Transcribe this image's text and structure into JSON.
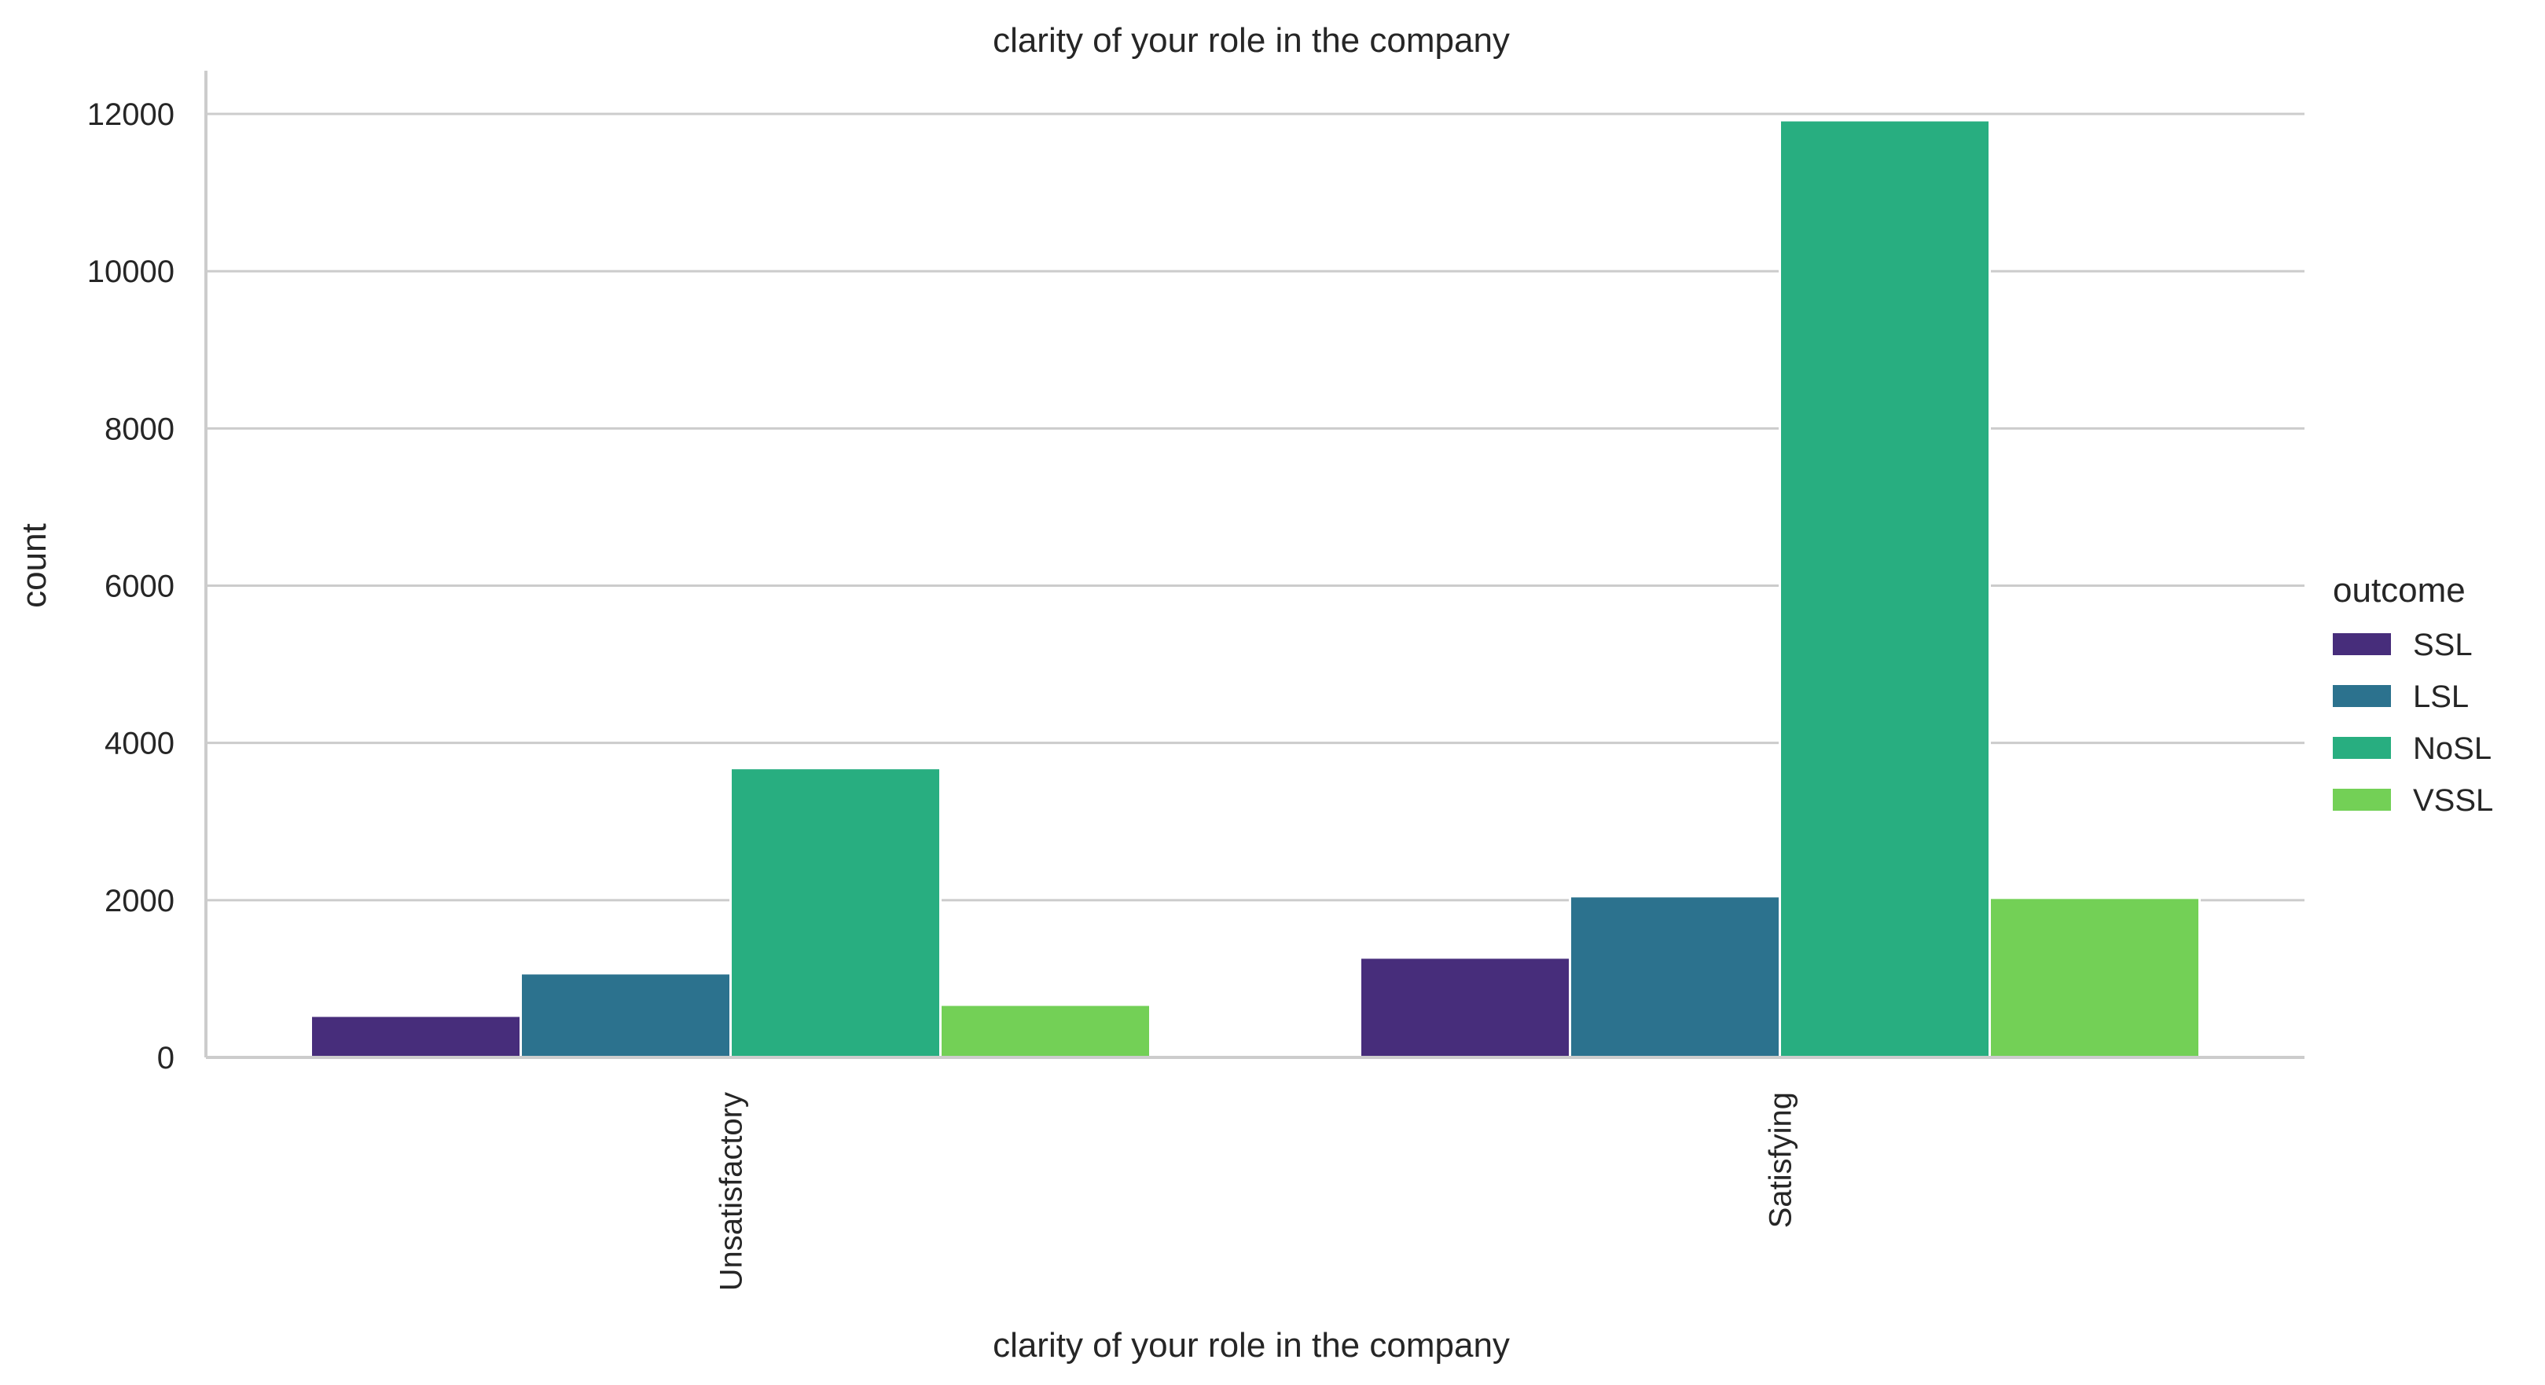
{
  "chart_data": {
    "type": "bar",
    "title": "clarity of your role in the company",
    "xlabel": "clarity of your role in the company",
    "ylabel": "count",
    "categories": [
      "Unsatisfactory",
      "Satisfying"
    ],
    "series": [
      {
        "name": "SSL",
        "values": [
          530,
          1270
        ],
        "color": "#472d7b"
      },
      {
        "name": "LSL",
        "values": [
          1070,
          2050
        ],
        "color": "#2c728e"
      },
      {
        "name": "NoSL",
        "values": [
          3680,
          11920
        ],
        "color": "#28ae80"
      },
      {
        "name": "VSSL",
        "values": [
          670,
          2030
        ],
        "color": "#73d056"
      }
    ],
    "ylim": [
      0,
      12550
    ],
    "yticks": [
      0,
      2000,
      4000,
      6000,
      8000,
      10000,
      12000
    ],
    "grid": true,
    "legend_title": "outcome",
    "legend_placement": "right"
  }
}
